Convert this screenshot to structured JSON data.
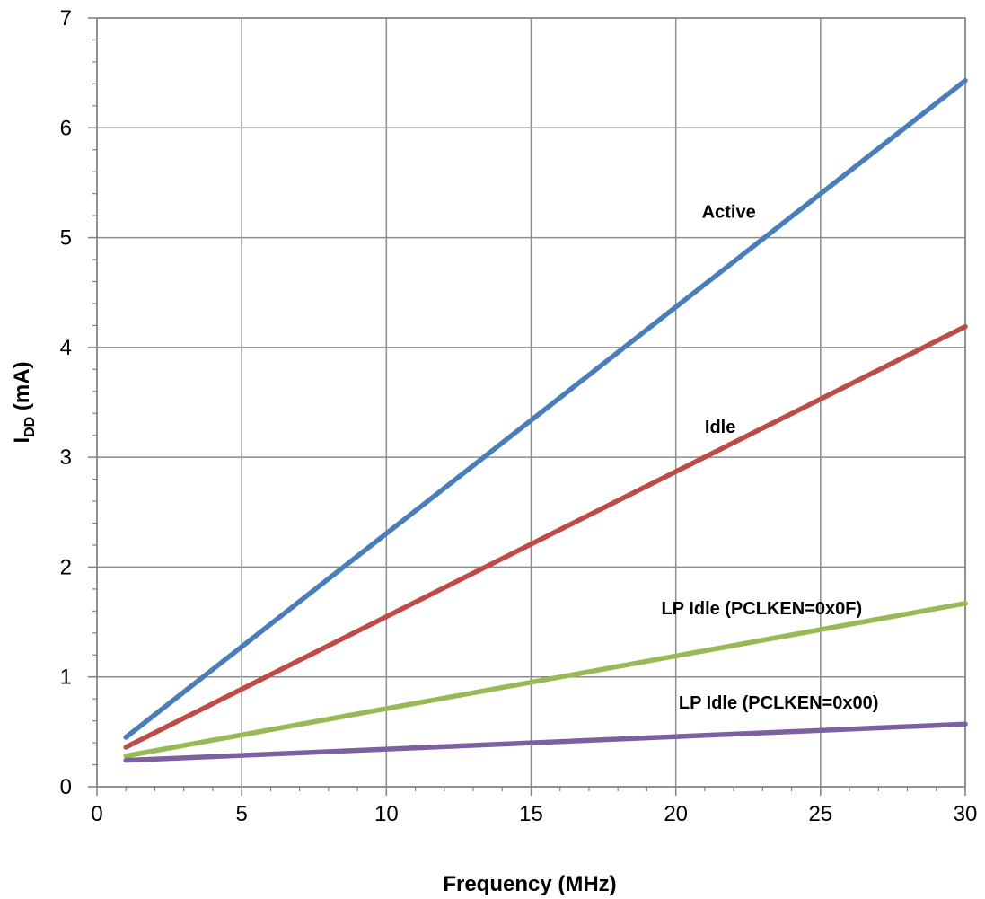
{
  "chart_data": {
    "type": "line",
    "xlabel": "Frequency (MHz)",
    "ylabel_main": "I",
    "ylabel_sub": "DD",
    "ylabel_unit": " (mA)",
    "xlim": [
      0,
      30
    ],
    "ylim": [
      0,
      7
    ],
    "xticks": [
      0,
      5,
      10,
      15,
      20,
      25,
      30
    ],
    "yticks": [
      0,
      1,
      2,
      3,
      4,
      5,
      6,
      7
    ],
    "x_minor_step": 1,
    "y_minor_step": 0.2,
    "grid": true,
    "legend": "none (inline series labels)",
    "series": [
      {
        "name": "Active",
        "color": "#4a7ebb",
        "x": [
          1,
          30
        ],
        "y": [
          0.45,
          6.43
        ],
        "label_at": [
          20.9,
          5.18
        ]
      },
      {
        "name": "Idle",
        "color": "#be4b48",
        "x": [
          1,
          30
        ],
        "y": [
          0.36,
          4.19
        ],
        "label_at": [
          21.0,
          3.22
        ]
      },
      {
        "name": "LP Idle (PCLKEN=0x0F)",
        "color": "#98b954",
        "x": [
          1,
          30
        ],
        "y": [
          0.28,
          1.67
        ],
        "label_at": [
          19.5,
          1.57
        ]
      },
      {
        "name": "LP Idle (PCLKEN=0x00)",
        "color": "#7d60a0",
        "x": [
          1,
          30
        ],
        "y": [
          0.24,
          0.57
        ],
        "label_at": [
          20.1,
          0.71
        ]
      }
    ]
  }
}
